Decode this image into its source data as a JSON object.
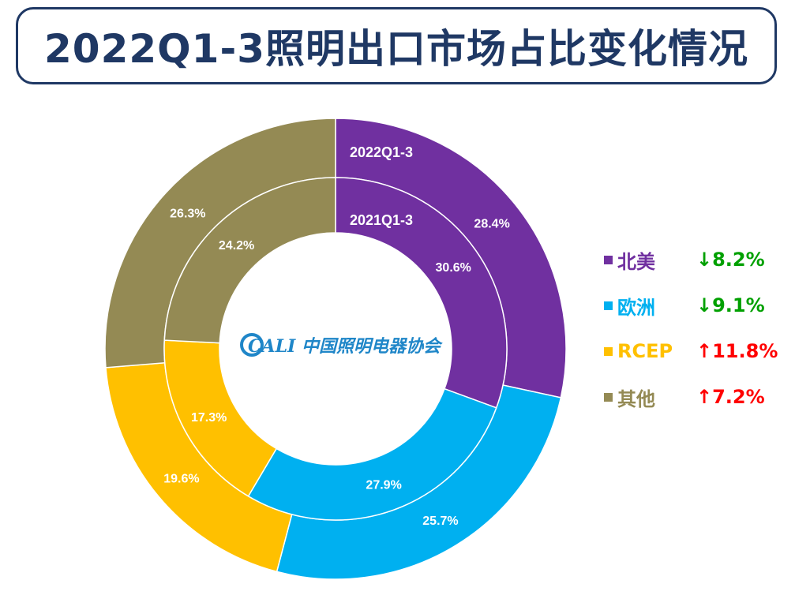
{
  "title": "2022Q1-3照明出口市场占比变化情况",
  "logo_text": "CALI 中国照明电器协会",
  "chart_data": {
    "type": "donut",
    "rings": [
      {
        "name": "2022Q1-3",
        "position": "outer",
        "values": [
          28.4,
          25.7,
          19.6,
          26.3
        ],
        "labels": [
          "28.4%",
          "25.7%",
          "19.6%",
          "26.3%"
        ]
      },
      {
        "name": "2021Q1-3",
        "position": "inner",
        "values": [
          30.6,
          27.9,
          17.3,
          24.2
        ],
        "labels": [
          "30.6%",
          "27.9%",
          "17.3%",
          "24.2%"
        ]
      }
    ],
    "categories": [
      "北美",
      "欧洲",
      "RCEP",
      "其他"
    ],
    "colors": [
      "#7030a0",
      "#00b0f0",
      "#ffc000",
      "#948a54"
    ],
    "legend_placement": "right"
  },
  "legend": [
    {
      "name": "北美",
      "arrow": "↓",
      "change": "8.2%",
      "color": "#7030a0",
      "change_color": "#00a000"
    },
    {
      "name": "欧洲",
      "arrow": "↓",
      "change": "9.1%",
      "color": "#00b0f0",
      "change_color": "#00a000"
    },
    {
      "name": "RCEP",
      "arrow": "↑",
      "change": "11.8%",
      "color": "#ffc000",
      "change_color": "#ff0000"
    },
    {
      "name": "其他",
      "arrow": "↑",
      "change": "7.2%",
      "color": "#948a54",
      "change_color": "#ff0000"
    }
  ]
}
